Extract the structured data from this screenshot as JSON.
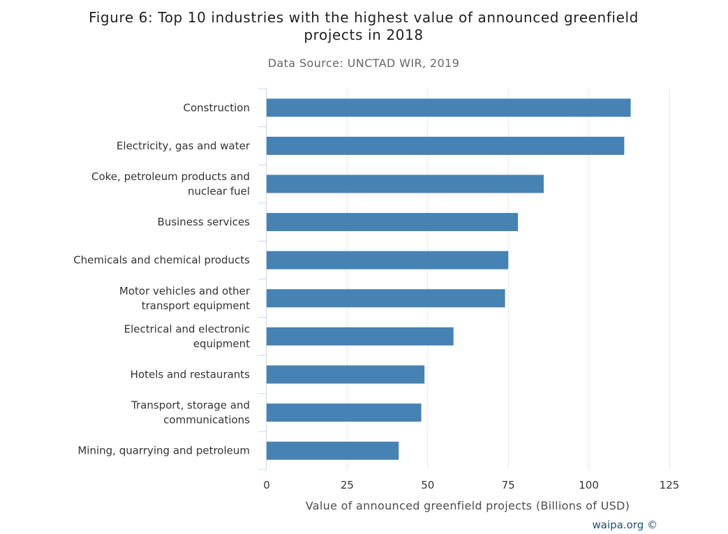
{
  "chart_data": {
    "type": "bar",
    "orientation": "horizontal",
    "title_lines": [
      "Figure 6: Top 10 industries with the highest value of announced greenfield",
      "projects in 2018"
    ],
    "subtitle": "Data Source: UNCTAD WIR, 2019",
    "categories": [
      [
        "Construction"
      ],
      [
        "Electricity, gas and water"
      ],
      [
        "Coke, petroleum products and",
        "nuclear fuel"
      ],
      [
        "Business services"
      ],
      [
        "Chemicals and chemical products"
      ],
      [
        "Motor vehicles and other",
        "transport equipment"
      ],
      [
        "Electrical and electronic",
        "equipment"
      ],
      [
        "Hotels and restaurants"
      ],
      [
        "Transport, storage and",
        "communications"
      ],
      [
        "Mining, quarrying and petroleum"
      ]
    ],
    "values": [
      113,
      111,
      86,
      78,
      75,
      74,
      58,
      49,
      48,
      41
    ],
    "xlabel": "Value of announced greenfield projects (Billions of USD)",
    "ylabel": "",
    "xlim": [
      0,
      125
    ],
    "ticks": [
      "0",
      "25",
      "50",
      "75",
      "100",
      "125"
    ],
    "grid": "vertical",
    "bar_color": "#4682b4",
    "credit": "waipa.org ©"
  }
}
